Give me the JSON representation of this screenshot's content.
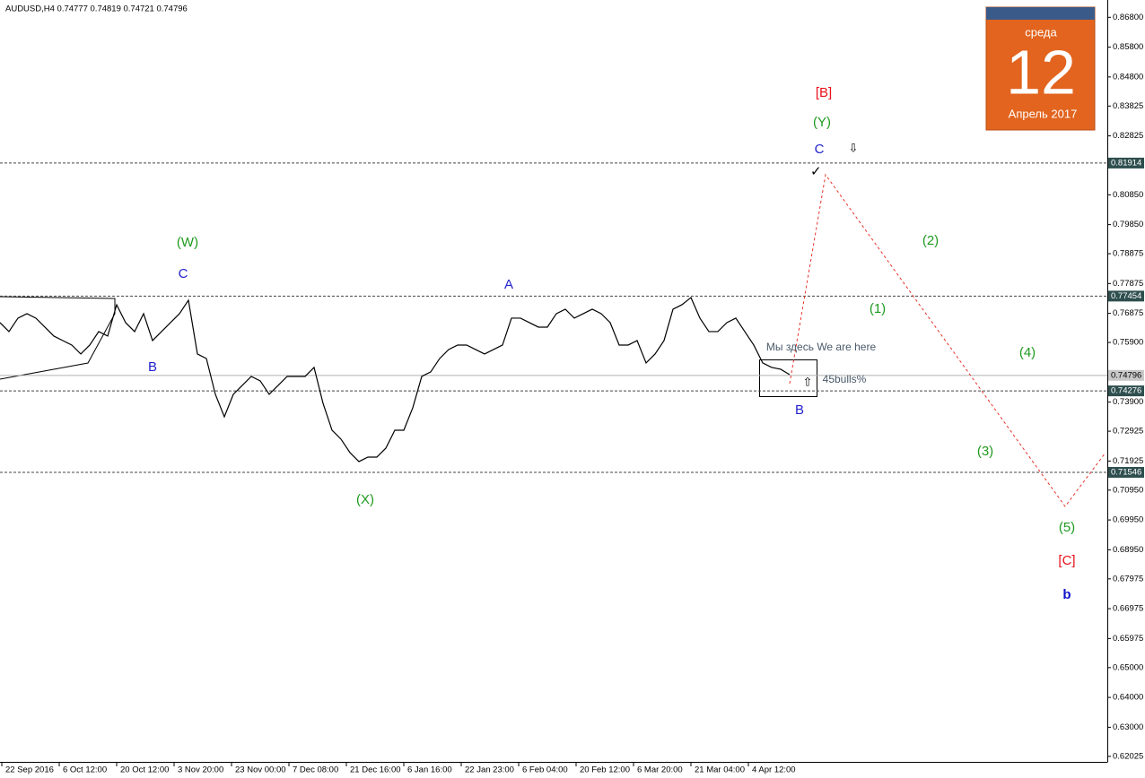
{
  "chart_data": {
    "type": "line",
    "header": "AUDUSD,H4  0.74777 0.74819 0.74721 0.74796",
    "calendar": {
      "weekday": "среда",
      "day": "12",
      "month": "Апрель 2017"
    },
    "series": [
      {
        "name": "AUDUSD",
        "color": "#000000",
        "values": [
          0.76564,
          0.76264,
          0.76715,
          0.76865,
          0.76715,
          0.76414,
          0.76114,
          0.75963,
          0.75813,
          0.75513,
          0.75813,
          0.76264,
          0.76114,
          0.77165,
          0.76564,
          0.76264,
          0.76865,
          0.75963,
          0.76264,
          0.76564,
          0.76865,
          0.77316,
          0.75513,
          0.75362,
          0.7416,
          0.73409,
          0.7416,
          0.74461,
          0.74761,
          0.74611,
          0.7416,
          0.74461,
          0.74761,
          0.74761,
          0.74761,
          0.75062,
          0.7386,
          0.72958,
          0.72658,
          0.72207,
          0.71907,
          0.72057,
          0.72057,
          0.72357,
          0.72958,
          0.72958,
          0.7371,
          0.74761,
          0.74912,
          0.75362,
          0.75663,
          0.75813,
          0.75813,
          0.75663,
          0.75513,
          0.75663,
          0.75813,
          0.76715,
          0.76715,
          0.76564,
          0.76414,
          0.76414,
          0.76865,
          0.77015,
          0.76715,
          0.76865,
          0.77015,
          0.76865,
          0.76564,
          0.75813,
          0.75813,
          0.75963,
          0.75212,
          0.75513,
          0.75963,
          0.77015,
          0.77165,
          0.77406,
          0.76715,
          0.76264,
          0.76264,
          0.76564,
          0.76715,
          0.76264,
          0.75813,
          0.75212,
          0.75062,
          0.75002,
          0.74821
        ]
      }
    ],
    "forecast": {
      "color": "#e8322a",
      "x": [
        88,
        92,
        118.7,
        123.2
      ],
      "values": [
        0.74521,
        0.81523,
        0.70404,
        0.72207
      ]
    },
    "levels": [
      0.81914,
      0.77454,
      0.74276,
      0.71546
    ],
    "current": 0.74796,
    "ylim": [
      0.6184,
      0.8723
    ],
    "yticks": [
      {
        "value": 0.868,
        "label": "0.86800"
      },
      {
        "value": 0.858,
        "label": "0.85800"
      },
      {
        "value": 0.848,
        "label": "0.84800"
      },
      {
        "value": 0.83825,
        "label": "0.83825"
      },
      {
        "value": 0.82825,
        "label": "0.82825"
      },
      {
        "value": 0.8085,
        "label": "0.80850"
      },
      {
        "value": 0.7985,
        "label": "0.79850"
      },
      {
        "value": 0.78875,
        "label": "0.78875"
      },
      {
        "value": 0.77875,
        "label": "0.77875"
      },
      {
        "value": 0.76875,
        "label": "0.76875"
      },
      {
        "value": 0.759,
        "label": "0.75900"
      },
      {
        "value": 0.739,
        "label": "0.73900"
      },
      {
        "value": 0.72925,
        "label": "0.72925"
      },
      {
        "value": 0.71925,
        "label": "0.71925"
      },
      {
        "value": 0.7095,
        "label": "0.70950"
      },
      {
        "value": 0.6995,
        "label": "0.69950"
      },
      {
        "value": 0.6895,
        "label": "0.68950"
      },
      {
        "value": 0.67975,
        "label": "0.67975"
      },
      {
        "value": 0.66975,
        "label": "0.66975"
      },
      {
        "value": 0.65975,
        "label": "0.65975"
      },
      {
        "value": 0.65,
        "label": "0.65000"
      },
      {
        "value": 0.64,
        "label": "0.64000"
      },
      {
        "value": 0.63,
        "label": "0.63000"
      },
      {
        "value": 0.62025,
        "label": "0.62025"
      }
    ],
    "xticks": [
      {
        "value": 0.2,
        "label": "22 Sep 2016"
      },
      {
        "value": 6.6,
        "label": "6 Oct 12:00"
      },
      {
        "value": 13,
        "label": "20 Oct 12:00"
      },
      {
        "value": 19.4,
        "label": "3 Nov 20:00"
      },
      {
        "value": 25.8,
        "label": "23 Nov 00:00"
      },
      {
        "value": 32.2,
        "label": "7 Dec 08:00"
      },
      {
        "value": 38.6,
        "label": "21 Dec 16:00"
      },
      {
        "value": 45,
        "label": "6 Jan 16:00"
      },
      {
        "value": 51.4,
        "label": "22 Jan 23:00"
      },
      {
        "value": 57.8,
        "label": "6 Feb 04:00"
      },
      {
        "value": 64.2,
        "label": "20 Feb 12:00"
      },
      {
        "value": 70.6,
        "label": "6 Mar 20:00"
      },
      {
        "value": 77,
        "label": "21 Mar 04:00"
      },
      {
        "value": 83.4,
        "label": "4 Apr 12:00"
      }
    ],
    "annotations": [
      {
        "text": "[B]",
        "color": "#e8101a"
      },
      {
        "text": "(Y)",
        "color": "#1e9a1e"
      },
      {
        "text": "C",
        "color": "#2222cc"
      },
      {
        "text": "(W)",
        "color": "#1e9a1e"
      },
      {
        "text": "C",
        "color": "#2222cc"
      },
      {
        "text": "B",
        "color": "#2222cc"
      },
      {
        "text": "A",
        "color": "#2222cc"
      },
      {
        "text": "(X)",
        "color": "#1e9a1e"
      },
      {
        "text": "B",
        "color": "#2222cc"
      },
      {
        "text": "(2)",
        "color": "#1e9a1e"
      },
      {
        "text": "(1)",
        "color": "#1e9a1e"
      },
      {
        "text": "(4)",
        "color": "#1e9a1e"
      },
      {
        "text": "(3)",
        "color": "#1e9a1e"
      },
      {
        "text": "(5)",
        "color": "#1e9a1e"
      },
      {
        "text": "[C]",
        "color": "#e8101a"
      },
      {
        "text": "b",
        "color": "#1010cc"
      },
      {
        "text": "Мы здесь We are here",
        "color": "#4a5a6a"
      },
      {
        "text": "45bulls%",
        "color": "#4a5a6a"
      }
    ]
  }
}
